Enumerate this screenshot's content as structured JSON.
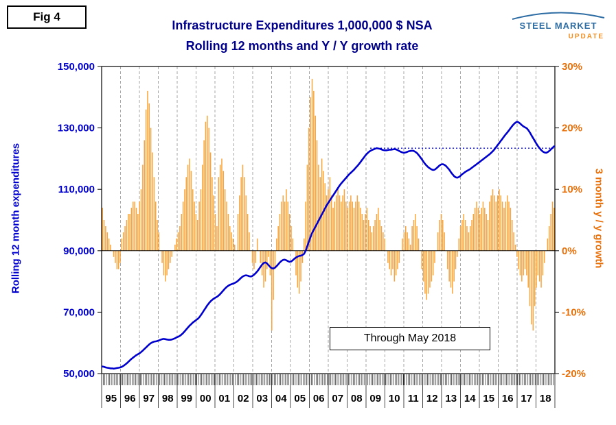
{
  "fig_label": "Fig 4",
  "title": {
    "line1": "Infrastructure Expenditures 1,000,000 $ NSA",
    "line2": "Rolling 12 months and Y / Y growth rate"
  },
  "logo": {
    "line1": "STEEL MARKET",
    "line2": "UPDATE"
  },
  "annotation": "Through May 2018",
  "left_axis": {
    "title": "Rolling 12 month expenditures",
    "color": "#0000CD",
    "tick_values": [
      150000,
      130000,
      110000,
      90000,
      70000,
      50000
    ],
    "tick_labels": [
      "150,000",
      "130,000",
      "110,000",
      "90,000",
      "70,000",
      "50,000"
    ],
    "min": 50000,
    "max": 150000
  },
  "right_axis": {
    "title": "3 month y / y growth",
    "color": "#E8700A",
    "tick_values": [
      30,
      20,
      10,
      0,
      -10,
      -20
    ],
    "tick_labels": [
      "30%",
      "20%",
      "10%",
      "0%",
      "-10%",
      "-20%"
    ],
    "min": -20,
    "max": 30
  },
  "chart_data": {
    "type": "mixed line+bar",
    "start_month": "1995-01",
    "end_month": "2018-05",
    "x_year_labels": [
      "95",
      "96",
      "97",
      "98",
      "99",
      "00",
      "01",
      "02",
      "03",
      "04",
      "05",
      "06",
      "07",
      "08",
      "09",
      "10",
      "11",
      "12",
      "13",
      "14",
      "15",
      "16",
      "17",
      "18"
    ],
    "grid": "vertical dashed per year",
    "reference_line": {
      "value": 123400,
      "start_month": "2008-11",
      "style": "dotted",
      "color": "#0000CD"
    },
    "series": [
      {
        "name": "Rolling 12 month expenditures",
        "type": "line",
        "color": "#0000CD",
        "axis": "left",
        "values": [
          52300,
          52200,
          52000,
          51900,
          51800,
          51700,
          51700,
          51600,
          51700,
          51800,
          51900,
          52000,
          52200,
          52500,
          52900,
          53300,
          53800,
          54300,
          54800,
          55200,
          55600,
          56000,
          56300,
          56600,
          57000,
          57500,
          58000,
          58500,
          59000,
          59500,
          59900,
          60200,
          60400,
          60500,
          60600,
          60800,
          61000,
          61200,
          61300,
          61200,
          61100,
          61000,
          61000,
          61100,
          61300,
          61500,
          61800,
          62000,
          62300,
          62700,
          63200,
          63800,
          64400,
          65000,
          65600,
          66100,
          66600,
          67000,
          67400,
          67800,
          68300,
          69000,
          69800,
          70600,
          71400,
          72200,
          72900,
          73500,
          74000,
          74400,
          74700,
          75000,
          75400,
          75900,
          76500,
          77100,
          77700,
          78200,
          78600,
          78900,
          79100,
          79300,
          79500,
          79800,
          80200,
          80700,
          81200,
          81600,
          81900,
          82000,
          81900,
          81700,
          81600,
          81800,
          82200,
          82700,
          83300,
          84000,
          84800,
          85500,
          86000,
          86200,
          85900,
          85300,
          84700,
          84300,
          84200,
          84500,
          85000,
          85600,
          86200,
          86700,
          87000,
          87100,
          86900,
          86600,
          86400,
          86500,
          86900,
          87400,
          87800,
          88100,
          88300,
          88400,
          88600,
          89000,
          90000,
          91500,
          93000,
          94500,
          95800,
          96800,
          97800,
          98800,
          99800,
          100800,
          101800,
          102800,
          103800,
          104800,
          105600,
          106400,
          107200,
          108000,
          108800,
          109600,
          110400,
          111200,
          111900,
          112500,
          113100,
          113700,
          114300,
          114900,
          115400,
          115900,
          116400,
          117000,
          117600,
          118200,
          118900,
          119600,
          120300,
          121000,
          121600,
          122100,
          122500,
          122800,
          123000,
          123200,
          123400,
          123300,
          123200,
          123000,
          122800,
          122700,
          122700,
          122800,
          122900,
          122900,
          123000,
          123100,
          123000,
          122800,
          122500,
          122200,
          122000,
          121900,
          122000,
          122200,
          122400,
          122500,
          122600,
          122500,
          122200,
          121800,
          121200,
          120500,
          119800,
          119000,
          118300,
          117700,
          117200,
          116800,
          116500,
          116300,
          116400,
          116800,
          117300,
          117800,
          118100,
          118200,
          118000,
          117600,
          117000,
          116400,
          115600,
          114900,
          114300,
          113900,
          113800,
          114000,
          114400,
          114900,
          115300,
          115700,
          116000,
          116300,
          116600,
          117000,
          117400,
          117800,
          118200,
          118600,
          119000,
          119400,
          119800,
          120200,
          120600,
          121000,
          121400,
          121900,
          122400,
          123000,
          123700,
          124400,
          125100,
          125800,
          126500,
          127200,
          127900,
          128500,
          129200,
          129900,
          130600,
          131200,
          131700,
          132000,
          131800,
          131400,
          130900,
          130500,
          130200,
          129900,
          129300,
          128500,
          127600,
          126700,
          125800,
          124900,
          124100,
          123400,
          122800,
          122300,
          122000,
          121900,
          122100,
          122500,
          123000,
          123500,
          124000
        ]
      },
      {
        "name": "3 month y / y growth",
        "type": "bar",
        "color": "#FAA43A",
        "axis": "right",
        "values": [
          7,
          5,
          4,
          3,
          2,
          1,
          0,
          -1,
          -2,
          -3,
          -3,
          -2,
          2,
          3,
          4,
          5,
          6,
          6,
          7,
          8,
          8,
          7,
          6,
          8,
          10,
          14,
          18,
          23,
          26,
          24,
          20,
          16,
          12,
          8,
          5,
          3,
          0,
          -2,
          -4,
          -5,
          -4,
          -3,
          -2,
          -1,
          0,
          1,
          2,
          3,
          4,
          6,
          8,
          10,
          12,
          14,
          15,
          13,
          10,
          8,
          6,
          5,
          8,
          10,
          14,
          18,
          21,
          22,
          20,
          16,
          12,
          9,
          6,
          4,
          12,
          14,
          15,
          13,
          10,
          8,
          6,
          4,
          3,
          2,
          1,
          0,
          6,
          9,
          12,
          14,
          12,
          9,
          6,
          3,
          0,
          -2,
          -3,
          -2,
          2,
          0,
          -2,
          -4,
          -6,
          -5,
          -3,
          -1,
          -4,
          -13,
          -8,
          -3,
          2,
          4,
          6,
          8,
          9,
          8,
          10,
          8,
          6,
          4,
          2,
          0,
          -4,
          -6,
          -7,
          -5,
          -2,
          2,
          8,
          14,
          20,
          25,
          28,
          26,
          22,
          18,
          14,
          12,
          15,
          13,
          11,
          9,
          10,
          12,
          9,
          7,
          8,
          9,
          10,
          9,
          8,
          9,
          10,
          8,
          7,
          8,
          9,
          8,
          7,
          8,
          9,
          8,
          7,
          6,
          5,
          6,
          7,
          5,
          4,
          3,
          4,
          5,
          6,
          7,
          5,
          4,
          3,
          2,
          0,
          -2,
          -3,
          -4,
          -3,
          -5,
          -4,
          -3,
          -2,
          0,
          2,
          3,
          4,
          3,
          2,
          1,
          4,
          5,
          6,
          4,
          2,
          0,
          -3,
          -5,
          -7,
          -8,
          -7,
          -6,
          -5,
          -4,
          -2,
          0,
          3,
          5,
          6,
          5,
          3,
          0,
          -3,
          -5,
          -6,
          -7,
          -5,
          -3,
          -1,
          2,
          4,
          5,
          6,
          5,
          4,
          3,
          4,
          5,
          6,
          7,
          8,
          7,
          6,
          7,
          8,
          7,
          6,
          5,
          8,
          9,
          10,
          9,
          8,
          9,
          10,
          9,
          8,
          7,
          8,
          9,
          8,
          7,
          5,
          3,
          1,
          -1,
          -3,
          -4,
          -5,
          -4,
          -3,
          -4,
          -6,
          -9,
          -12,
          -13,
          -9,
          -6,
          -4,
          -5,
          -6,
          -4,
          -2,
          0,
          2,
          4,
          6,
          8,
          7
        ]
      }
    ]
  }
}
